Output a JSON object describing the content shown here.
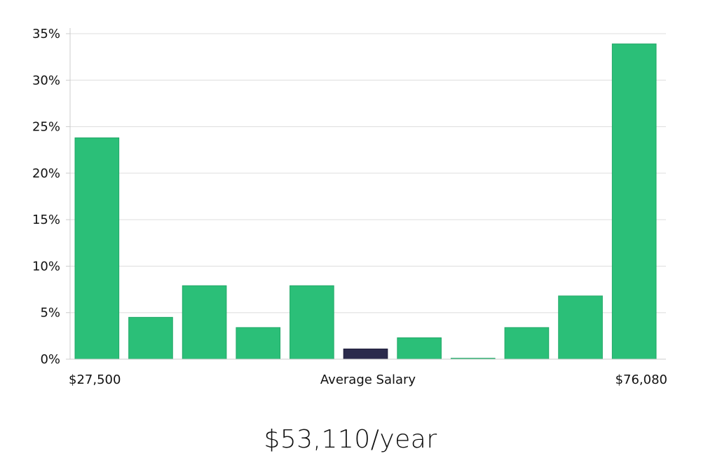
{
  "chart_data": {
    "type": "bar",
    "title": "",
    "xlabel": "Average Salary",
    "ylabel": "",
    "x_min_label": "$27,500",
    "x_max_label": "$76,080",
    "ylim": [
      0,
      35
    ],
    "y_ticks": [
      0,
      5,
      10,
      15,
      20,
      25,
      30,
      35
    ],
    "y_tick_labels": [
      "0%",
      "5%",
      "10%",
      "15%",
      "20%",
      "25%",
      "30%",
      "35%"
    ],
    "grid": true,
    "values": [
      23.8,
      4.5,
      7.9,
      3.4,
      7.9,
      1.1,
      2.3,
      0.1,
      3.4,
      6.8,
      33.9
    ],
    "highlight_index": 5,
    "colors": {
      "bar": "#2bbf78",
      "highlight": "#2b2a4c",
      "grid": "#dddddd"
    }
  },
  "salary_text": "$53,110/year"
}
